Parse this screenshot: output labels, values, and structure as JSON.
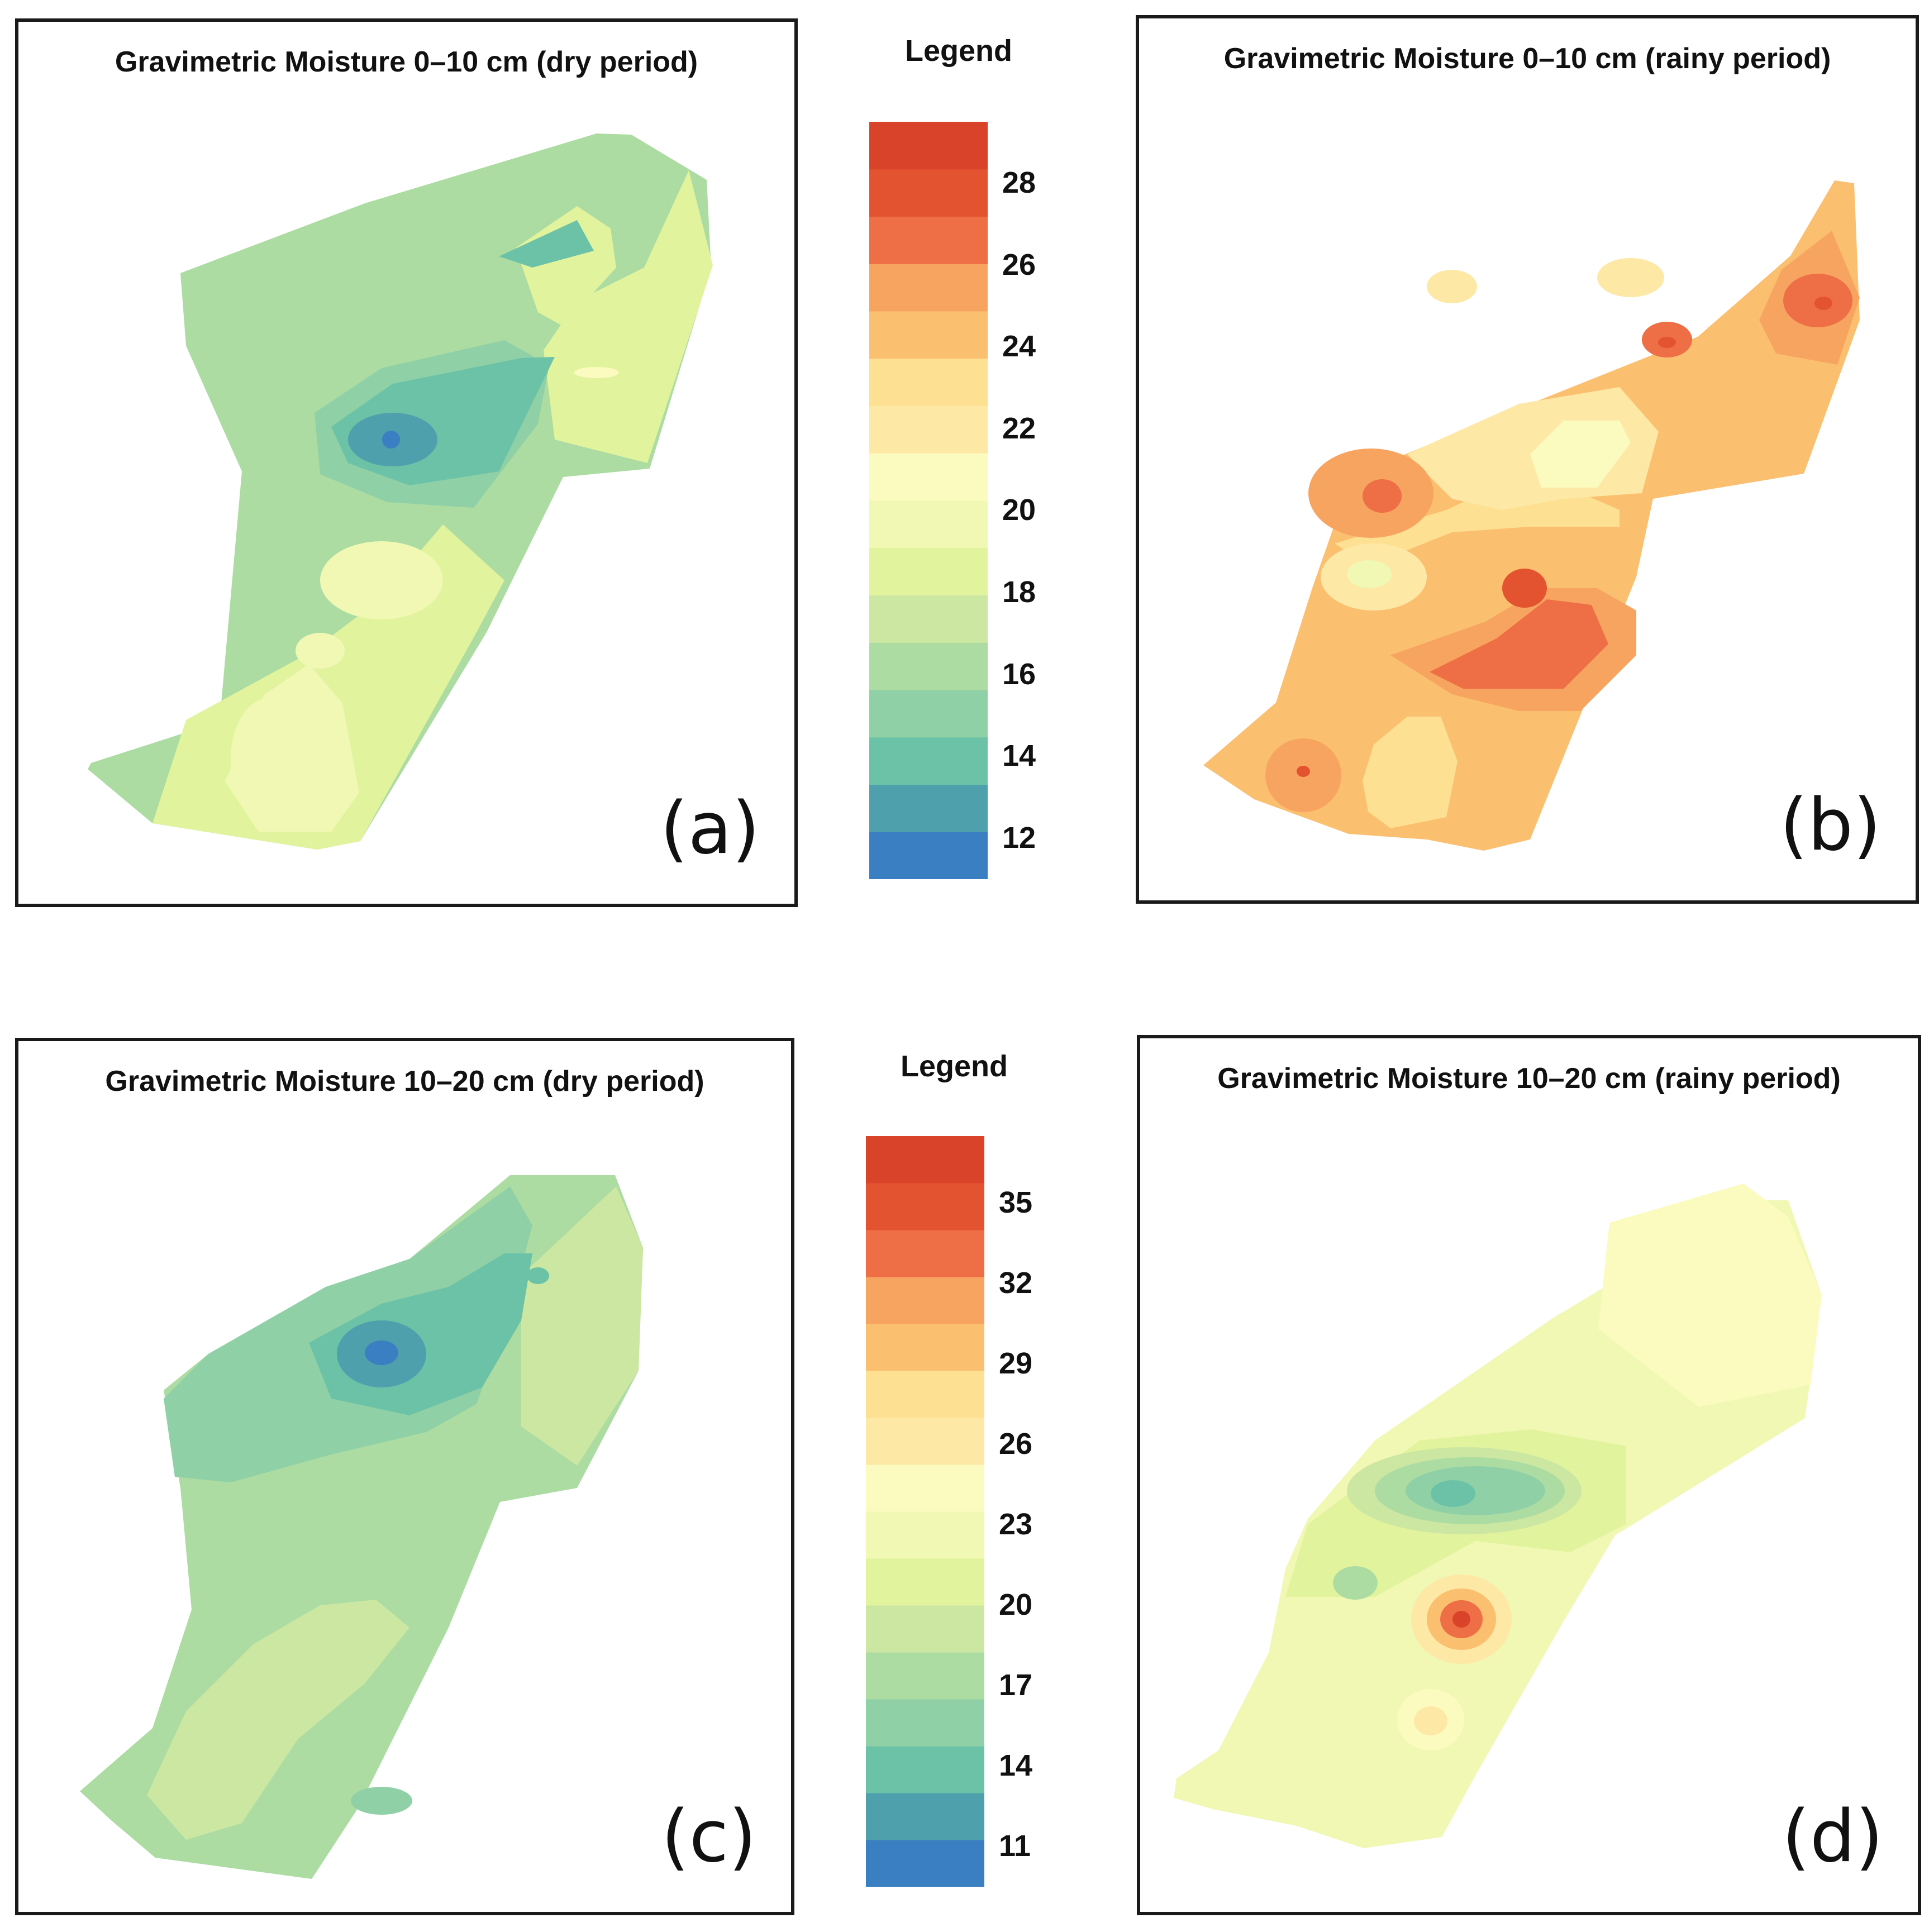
{
  "colors": {
    "ramp": [
      "#3a7fc2",
      "#4ea0ad",
      "#6cc2a7",
      "#8fd0a6",
      "#acdca2",
      "#cbe7a2",
      "#e2f39d",
      "#f0f8b4",
      "#fbfbc0",
      "#fde8a6",
      "#fde092",
      "#fbbf70",
      "#f8a461",
      "#ee6e45",
      "#e4532f",
      "#d8432a"
    ],
    "frame": "#1a1a1a",
    "text": "#111111"
  },
  "panels": {
    "a": {
      "title": "Gravimetric Moisture 0–10 cm (dry period)",
      "letter": "(a)",
      "depth": "0–10 cm",
      "period": "dry"
    },
    "b": {
      "title": "Gravimetric Moisture 0–10 cm (rainy period)",
      "letter": "(b)",
      "depth": "0–10 cm",
      "period": "rainy"
    },
    "c": {
      "title": "Gravimetric Moisture 10–20 cm (dry period)",
      "letter": "(c)",
      "depth": "10–20 cm",
      "period": "dry"
    },
    "d": {
      "title": "Gravimetric Moisture 10–20 cm (rainy period)",
      "letter": "(d)",
      "depth": "10–20 cm",
      "period": "rainy"
    }
  },
  "legends": {
    "top": {
      "title": "Legend",
      "ticks": [
        "28",
        "26",
        "24",
        "22",
        "20",
        "18",
        "16",
        "14",
        "12"
      ],
      "values": [
        28,
        26,
        24,
        22,
        20,
        18,
        16,
        14,
        12
      ],
      "min": 11,
      "max": 29.5
    },
    "bottom": {
      "title": "Legend",
      "ticks": [
        "35",
        "32",
        "29",
        "26",
        "23",
        "20",
        "17",
        "14",
        "11"
      ],
      "values": [
        35,
        32,
        29,
        26,
        23,
        20,
        17,
        14,
        11
      ],
      "min": 9.5,
      "max": 37.5
    }
  }
}
